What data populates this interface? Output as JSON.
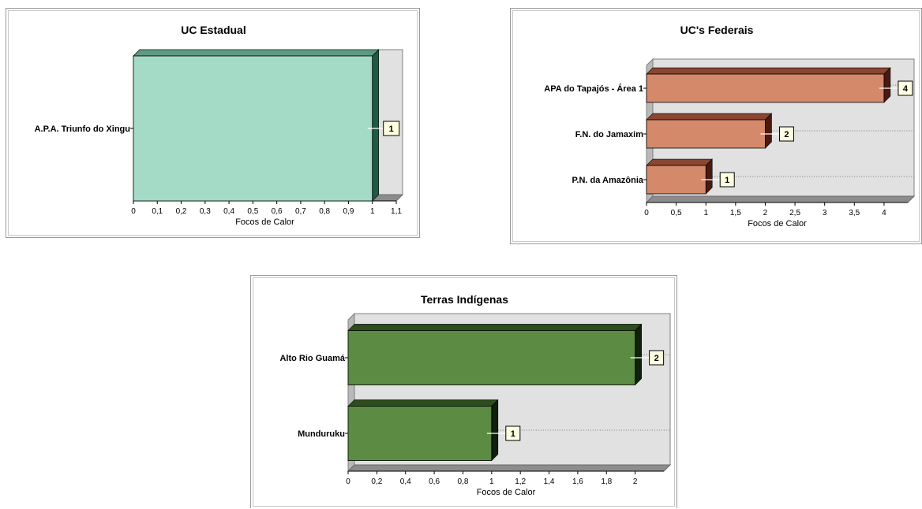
{
  "chart_data": [
    {
      "id": "estadual",
      "type": "bar",
      "orientation": "horizontal",
      "title": "UC Estadual",
      "xlabel": "Focos de Calor",
      "categories": [
        "A.P.A. Triunfo do Xingu"
      ],
      "values": [
        1
      ],
      "data_labels": [
        "1"
      ],
      "xlim": [
        0,
        1.1
      ],
      "ticks": [
        "0",
        "0,1",
        "0,2",
        "0,3",
        "0,4",
        "0,5",
        "0,6",
        "0,7",
        "0,8",
        "0,9",
        "1",
        "1,1"
      ],
      "grid": false,
      "colors": {
        "front": "#a3dbc6",
        "top": "#5e9a82",
        "side": "#1f5a44",
        "plot": "#e1e1e1",
        "wall": "#b9b9b9",
        "floor": "#8c8c8c"
      }
    },
    {
      "id": "federais",
      "type": "bar",
      "orientation": "horizontal",
      "title": "UC's  Federais",
      "xlabel": "Focos de Calor",
      "categories": [
        "APA do Tapajós - Área 1",
        "F.N. do Jamaxim",
        "P.N. da Amazônia"
      ],
      "values": [
        4,
        2,
        1
      ],
      "data_labels": [
        "4",
        "2",
        "1"
      ],
      "xlim": [
        0,
        4.4
      ],
      "ticks": [
        "0",
        "0,5",
        "1",
        "1,5",
        "2",
        "2,5",
        "3",
        "3,5",
        "4"
      ],
      "grid": true,
      "colors": {
        "front": "#d3896a",
        "top": "#8a4630",
        "side": "#4a1a10",
        "plot": "#e1e1e1",
        "wall": "#b9b9b9",
        "floor": "#8c8c8c"
      }
    },
    {
      "id": "indigenas",
      "type": "bar",
      "orientation": "horizontal",
      "title": "Terras Indígenas",
      "xlabel": "Focos de Calor",
      "categories": [
        "Alto Rio Guamá",
        "Munduruku"
      ],
      "values": [
        2,
        1
      ],
      "data_labels": [
        "2",
        "1"
      ],
      "xlim": [
        0,
        2.2
      ],
      "ticks": [
        "0",
        "0,2",
        "0,4",
        "0,6",
        "0,8",
        "1",
        "1,2",
        "1,4",
        "1,6",
        "1,8",
        "2"
      ],
      "grid": true,
      "colors": {
        "front": "#5c8b44",
        "top": "#2c4d1c",
        "side": "#0f200b",
        "plot": "#e1e1e1",
        "wall": "#b9b9b9",
        "floor": "#8c8c8c"
      }
    }
  ]
}
